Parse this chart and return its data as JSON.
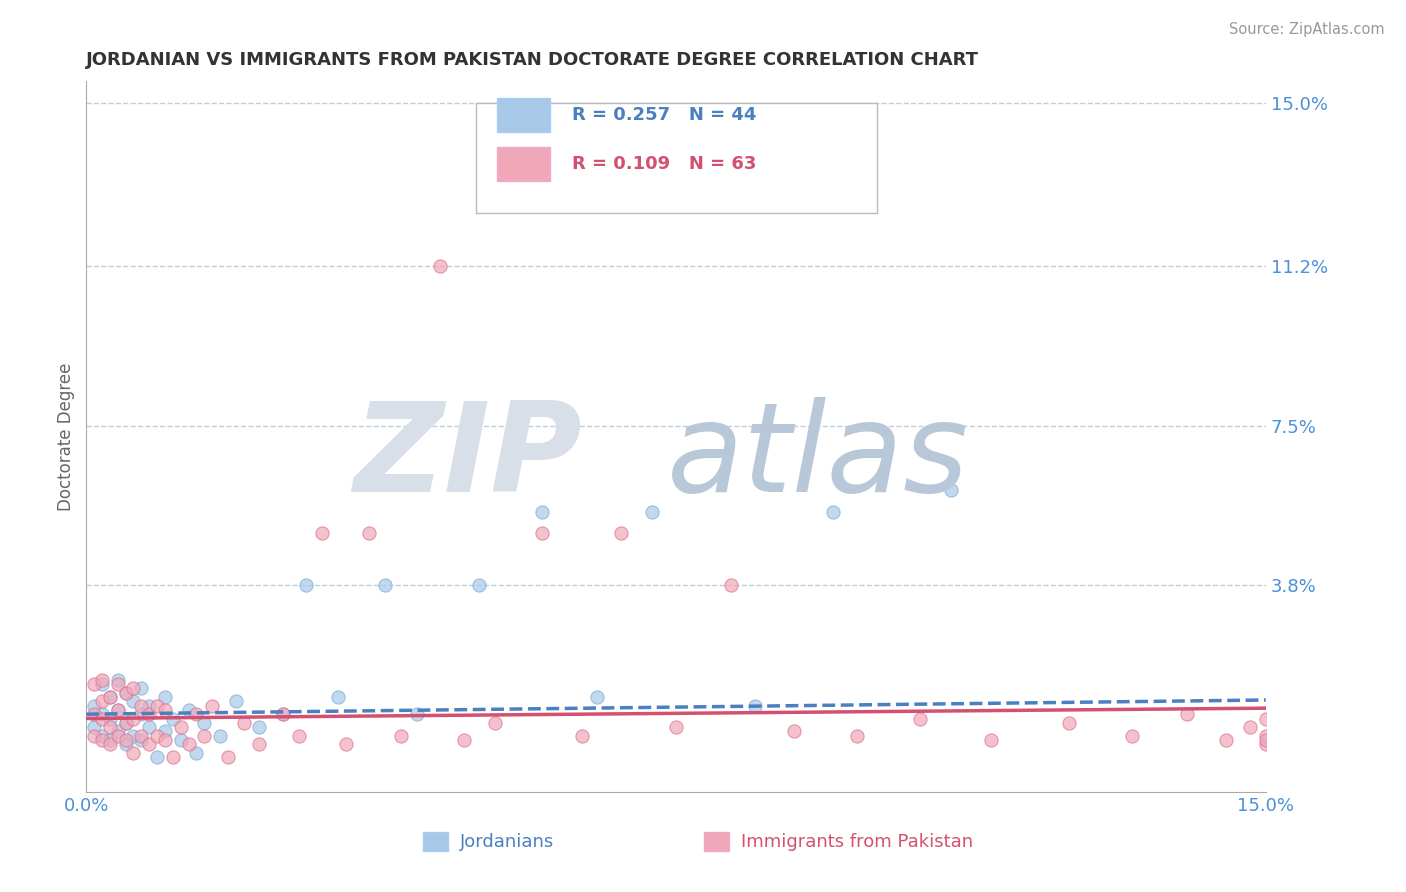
{
  "title": "JORDANIAN VS IMMIGRANTS FROM PAKISTAN DOCTORATE DEGREE CORRELATION CHART",
  "source": "Source: ZipAtlas.com",
  "ylabel": "Doctorate Degree",
  "xlim": [
    0.0,
    0.15
  ],
  "ylim": [
    -0.01,
    0.155
  ],
  "yticks": [
    0.038,
    0.075,
    0.112,
    0.15
  ],
  "ytick_labels": [
    "3.8%",
    "7.5%",
    "11.2%",
    "15.0%"
  ],
  "xticks": [
    0.0,
    0.15
  ],
  "xtick_labels": [
    "0.0%",
    "15.0%"
  ],
  "series": [
    {
      "name": "Jordanians",
      "R": 0.257,
      "N": 44,
      "color": "#a8c8e8",
      "edge_color": "#7aaed4",
      "line_color": "#4a7fc0",
      "line_style": "--"
    },
    {
      "name": "Immigrants from Pakistan",
      "R": 0.109,
      "N": 63,
      "color": "#f0a8b8",
      "edge_color": "#e07090",
      "line_color": "#d45070",
      "line_style": "-"
    }
  ],
  "background_color": "#ffffff",
  "grid_color": "#c0cfe0",
  "title_color": "#333333",
  "axis_label_color": "#4a90d9",
  "watermark_zip_color": "#d8dfe8",
  "watermark_atlas_color": "#b8c8d8",
  "line_intercept_j": 0.008,
  "line_slope_j": 0.022,
  "line_intercept_p": 0.007,
  "line_slope_p": 0.016,
  "jord_x": [
    0.001,
    0.001,
    0.002,
    0.002,
    0.002,
    0.003,
    0.003,
    0.003,
    0.004,
    0.004,
    0.004,
    0.005,
    0.005,
    0.005,
    0.006,
    0.006,
    0.007,
    0.007,
    0.007,
    0.008,
    0.008,
    0.009,
    0.01,
    0.01,
    0.011,
    0.012,
    0.013,
    0.014,
    0.015,
    0.017,
    0.019,
    0.022,
    0.025,
    0.028,
    0.032,
    0.038,
    0.042,
    0.05,
    0.058,
    0.065,
    0.072,
    0.085,
    0.095,
    0.11
  ],
  "jord_y": [
    0.005,
    0.01,
    0.003,
    0.008,
    0.015,
    0.002,
    0.007,
    0.012,
    0.004,
    0.009,
    0.016,
    0.001,
    0.006,
    0.013,
    0.003,
    0.011,
    0.002,
    0.008,
    0.014,
    0.005,
    0.01,
    -0.002,
    0.004,
    0.012,
    0.007,
    0.002,
    0.009,
    -0.001,
    0.006,
    0.003,
    0.011,
    0.005,
    0.008,
    0.038,
    0.012,
    0.038,
    0.008,
    0.038,
    0.055,
    0.012,
    0.055,
    0.01,
    0.055,
    0.06
  ],
  "pak_x": [
    0.001,
    0.001,
    0.001,
    0.002,
    0.002,
    0.002,
    0.002,
    0.003,
    0.003,
    0.003,
    0.004,
    0.004,
    0.004,
    0.005,
    0.005,
    0.005,
    0.006,
    0.006,
    0.006,
    0.007,
    0.007,
    0.008,
    0.008,
    0.009,
    0.009,
    0.01,
    0.01,
    0.011,
    0.012,
    0.013,
    0.014,
    0.015,
    0.016,
    0.018,
    0.02,
    0.022,
    0.025,
    0.027,
    0.03,
    0.033,
    0.036,
    0.04,
    0.045,
    0.048,
    0.052,
    0.058,
    0.063,
    0.068,
    0.075,
    0.082,
    0.09,
    0.098,
    0.106,
    0.115,
    0.125,
    0.133,
    0.14,
    0.145,
    0.148,
    0.15,
    0.15,
    0.15,
    0.15
  ],
  "pak_y": [
    0.003,
    0.008,
    0.015,
    0.002,
    0.007,
    0.011,
    0.016,
    0.001,
    0.005,
    0.012,
    0.003,
    0.009,
    0.015,
    0.002,
    0.006,
    0.013,
    -0.001,
    0.007,
    0.014,
    0.003,
    0.01,
    0.001,
    0.008,
    0.003,
    0.01,
    0.002,
    0.009,
    -0.002,
    0.005,
    0.001,
    0.008,
    0.003,
    0.01,
    -0.002,
    0.006,
    0.001,
    0.008,
    0.003,
    0.05,
    0.001,
    0.05,
    0.003,
    0.112,
    0.002,
    0.006,
    0.05,
    0.003,
    0.05,
    0.005,
    0.038,
    0.004,
    0.003,
    0.007,
    0.002,
    0.006,
    0.003,
    0.008,
    0.002,
    0.005,
    0.001,
    0.003,
    0.007,
    0.002
  ]
}
